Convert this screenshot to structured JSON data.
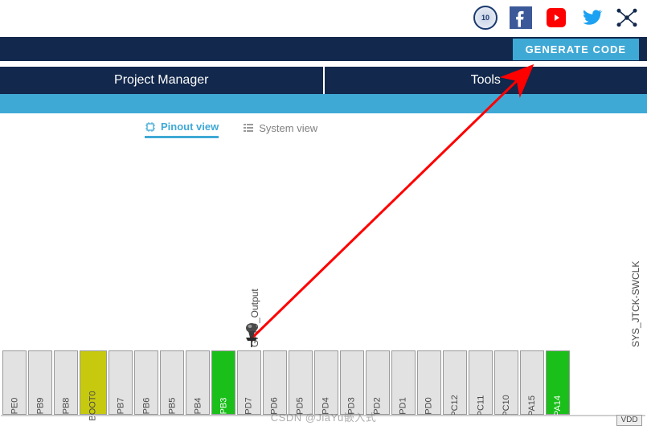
{
  "social": {
    "badge_text": "10"
  },
  "topbar": {
    "generate_label": "GENERATE CODE"
  },
  "tabs": {
    "project_manager": "Project Manager",
    "tools": "Tools"
  },
  "view_toggles": {
    "pinout": "Pinout view",
    "system": "System view"
  },
  "labels": {
    "pb3_function": "GPIO_Output",
    "pa14_function": "SYS_JTCK-SWCLK",
    "extra_pin": "VDD"
  },
  "colors": {
    "navy": "#12284c",
    "blue": "#3fa9d6",
    "pin_default": "#e2e2e2",
    "pin_green": "#1abf1a",
    "pin_yellow": "#c7c90f",
    "arrow_red": "#ff0000"
  },
  "pins": [
    {
      "label": "PE0",
      "color": "#e2e2e2"
    },
    {
      "label": "PB9",
      "color": "#e2e2e2"
    },
    {
      "label": "PB8",
      "color": "#e2e2e2"
    },
    {
      "label": "BOOT0",
      "color": "#c7c90f"
    },
    {
      "label": "PB7",
      "color": "#e2e2e2"
    },
    {
      "label": "PB6",
      "color": "#e2e2e2"
    },
    {
      "label": "PB5",
      "color": "#e2e2e2"
    },
    {
      "label": "PB4",
      "color": "#e2e2e2"
    },
    {
      "label": "PB3",
      "color": "#1abf1a"
    },
    {
      "label": "PD7",
      "color": "#e2e2e2"
    },
    {
      "label": "PD6",
      "color": "#e2e2e2"
    },
    {
      "label": "PD5",
      "color": "#e2e2e2"
    },
    {
      "label": "PD4",
      "color": "#e2e2e2"
    },
    {
      "label": "PD3",
      "color": "#e2e2e2"
    },
    {
      "label": "PD2",
      "color": "#e2e2e2"
    },
    {
      "label": "PD1",
      "color": "#e2e2e2"
    },
    {
      "label": "PD0",
      "color": "#e2e2e2"
    },
    {
      "label": "PC12",
      "color": "#e2e2e2"
    },
    {
      "label": "PC11",
      "color": "#e2e2e2"
    },
    {
      "label": "PC10",
      "color": "#e2e2e2"
    },
    {
      "label": "PA15",
      "color": "#e2e2e2"
    },
    {
      "label": "PA14",
      "color": "#1abf1a"
    }
  ],
  "watermark": "CSDN @JiaYu嵌入式"
}
